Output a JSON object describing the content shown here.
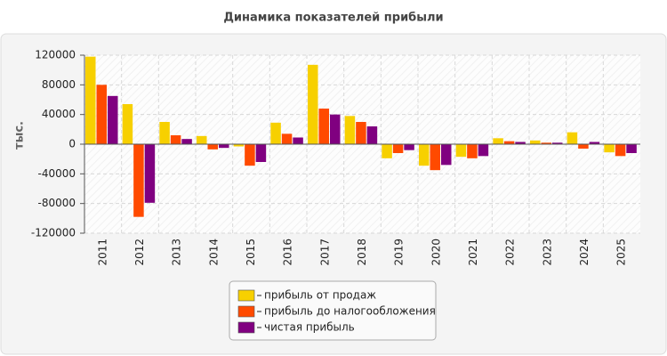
{
  "chart_data": {
    "type": "bar",
    "title": "Динамика показателей прибыли",
    "y_label": "тыс.",
    "categories": [
      "2011",
      "2012",
      "2013",
      "2014",
      "2015",
      "2016",
      "2017",
      "2018",
      "2019",
      "2020",
      "2021",
      "2022",
      "2023",
      "2024",
      "2025"
    ],
    "series": [
      {
        "name": "прибыль от продаж",
        "color": "#f7d000",
        "values": [
          118000,
          54000,
          30000,
          11000,
          -3000,
          29000,
          107000,
          38000,
          -19000,
          -29000,
          -17000,
          8000,
          5000,
          16000,
          -11000
        ]
      },
      {
        "name": "прибыль до налогообложения",
        "color": "#ff4a00",
        "values": [
          80000,
          -98000,
          12000,
          -7000,
          -29000,
          14000,
          48000,
          30000,
          -12000,
          -35000,
          -19000,
          4000,
          2000,
          -6000,
          -16000
        ]
      },
      {
        "name": "чистая прибыль",
        "color": "#800080",
        "values": [
          65000,
          -79000,
          7000,
          -5000,
          -24000,
          9000,
          40000,
          24000,
          -8000,
          -28000,
          -16000,
          3000,
          2000,
          3000,
          -12000
        ]
      }
    ],
    "ylim": [
      -120000,
      120000
    ],
    "yticks": [
      -120000,
      -80000,
      -40000,
      0,
      40000,
      80000,
      120000
    ],
    "grid": true,
    "legend": "bottom"
  }
}
